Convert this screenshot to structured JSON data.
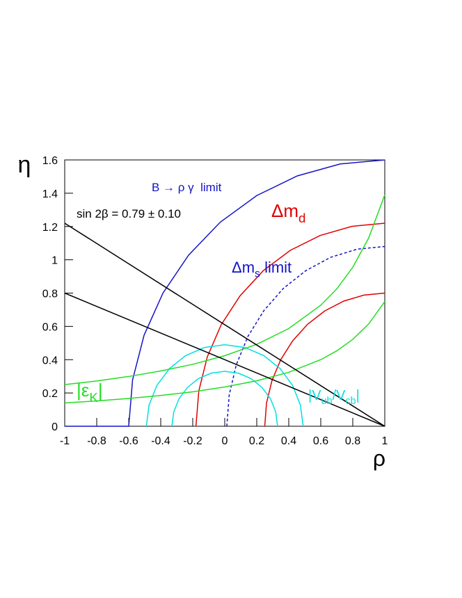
{
  "chart_data": {
    "type": "line",
    "xlabel": "ρ",
    "ylabel": "η",
    "xlim": [
      -1,
      1
    ],
    "ylim": [
      0,
      1.6
    ],
    "xticks": [
      -1,
      -0.8,
      -0.6,
      -0.4,
      -0.2,
      0,
      0.2,
      0.4,
      0.6,
      0.8,
      1
    ],
    "yticks": [
      0,
      0.2,
      0.4,
      0.6,
      0.8,
      1,
      1.2,
      1.4,
      1.6
    ],
    "series": [
      {
        "color": "#1414c8",
        "dash": false,
        "x": [
          -1,
          -0.6,
          -0.576,
          -0.504,
          -0.386,
          -0.226,
          -0.028,
          0.2,
          0.453,
          0.722,
          1
        ],
        "values": [
          0,
          0,
          0.278,
          0.547,
          0.8,
          1.028,
          1.226,
          1.386,
          1.504,
          1.576,
          1.6
        ]
      },
      {
        "color": "#e00000",
        "dash": false,
        "x": [
          -0.18,
          -0.162,
          -0.109,
          -0.022,
          0.096,
          0.241,
          0.41,
          0.596,
          0.795,
          1
        ],
        "values": [
          0,
          0.212,
          0.417,
          0.61,
          0.784,
          0.935,
          1.057,
          1.146,
          1.201,
          1.22
        ]
      },
      {
        "color": "#e00000",
        "dash": false,
        "x": [
          0.25,
          0.261,
          0.295,
          0.35,
          0.425,
          0.518,
          0.625,
          0.744,
          0.87,
          1
        ],
        "values": [
          0,
          0.139,
          0.274,
          0.4,
          0.514,
          0.613,
          0.693,
          0.752,
          0.788,
          0.8
        ]
      },
      {
        "color": "#1414c8",
        "dash": true,
        "x": [
          0.013,
          0.028,
          0.072,
          0.145,
          0.244,
          0.365,
          0.507,
          0.662,
          0.828,
          1
        ],
        "values": [
          0,
          0.188,
          0.369,
          0.54,
          0.694,
          0.827,
          0.935,
          1.015,
          1.064,
          1.08
        ]
      },
      {
        "color": "#00e0e0",
        "dash": false,
        "x": [
          0.49,
          0.473,
          0.424,
          0.346,
          0.245,
          0.127,
          0,
          -0.127,
          -0.245,
          -0.346,
          -0.424,
          -0.473,
          -0.49
        ],
        "values": [
          0,
          0.127,
          0.245,
          0.346,
          0.424,
          0.473,
          0.49,
          0.473,
          0.424,
          0.346,
          0.245,
          0.127,
          0
        ]
      },
      {
        "color": "#00e0e0",
        "dash": false,
        "x": [
          0.33,
          0.319,
          0.286,
          0.233,
          0.165,
          0.085,
          0,
          -0.085,
          -0.165,
          -0.233,
          -0.286,
          -0.319,
          -0.33
        ],
        "values": [
          0,
          0.085,
          0.165,
          0.233,
          0.286,
          0.319,
          0.33,
          0.319,
          0.286,
          0.233,
          0.165,
          0.085,
          0
        ]
      },
      {
        "color": "#22dd22",
        "dash": false,
        "x": [
          -1,
          -0.8,
          -0.6,
          -0.4,
          -0.2,
          0,
          0.2,
          0.4,
          0.6,
          0.7,
          0.8,
          0.9,
          1
        ],
        "values": [
          0.25,
          0.272,
          0.299,
          0.332,
          0.372,
          0.424,
          0.492,
          0.587,
          0.727,
          0.825,
          0.955,
          1.132,
          1.39
        ]
      },
      {
        "color": "#22dd22",
        "dash": false,
        "x": [
          -1,
          -0.8,
          -0.6,
          -0.4,
          -0.2,
          0,
          0.2,
          0.4,
          0.6,
          0.7,
          0.8,
          0.9,
          1
        ],
        "values": [
          0.14,
          0.152,
          0.167,
          0.185,
          0.207,
          0.236,
          0.273,
          0.324,
          0.4,
          0.453,
          0.522,
          0.615,
          0.749
        ]
      },
      {
        "color": "#000000",
        "dash": false,
        "x": [
          -1,
          1
        ],
        "values": [
          1.22,
          0
        ]
      },
      {
        "color": "#000000",
        "dash": false,
        "x": [
          -1,
          1
        ],
        "values": [
          0.8,
          0
        ]
      }
    ],
    "annotations": [
      {
        "color": "#1414c8",
        "parts": [
          {
            "text": "B → ρ γ  limit",
            "sub": false
          }
        ]
      },
      {
        "color": "#e00000",
        "parts": [
          {
            "text": "Δm",
            "sub": false
          },
          {
            "text": "d",
            "sub": true
          }
        ]
      },
      {
        "color": "#1414c8",
        "parts": [
          {
            "text": "Δm",
            "sub": false
          },
          {
            "text": "s",
            "sub": true
          },
          {
            "text": " limit",
            "sub": false
          }
        ]
      },
      {
        "color": "#000000",
        "parts": [
          {
            "text": "sin 2β = 0.79 ± 0.10",
            "sub": false
          }
        ]
      },
      {
        "color": "#22dd22",
        "parts": [
          {
            "text": "|ε",
            "sub": false
          },
          {
            "text": "K",
            "sub": true
          },
          {
            "text": "|",
            "sub": false
          }
        ]
      },
      {
        "color": "#00e0e0",
        "parts": [
          {
            "text": "|V",
            "sub": false
          },
          {
            "text": "ub",
            "sub": true
          },
          {
            "text": "/V",
            "sub": false
          },
          {
            "text": "cb",
            "sub": true
          },
          {
            "text": "|",
            "sub": false
          }
        ]
      }
    ]
  }
}
